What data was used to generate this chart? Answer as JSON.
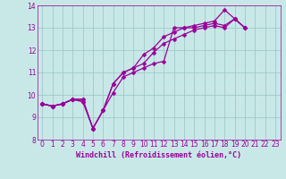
{
  "title": "",
  "xlabel": "Windchill (Refroidissement éolien,°C)",
  "ylabel": "",
  "background_color": "#c8e8e8",
  "grid_color": "#a0c8c8",
  "line_color": "#990099",
  "xlim": [
    -0.5,
    23.5
  ],
  "ylim": [
    8,
    14
  ],
  "yticks": [
    8,
    9,
    10,
    11,
    12,
    13,
    14
  ],
  "xticks": [
    0,
    1,
    2,
    3,
    4,
    5,
    6,
    7,
    8,
    9,
    10,
    11,
    12,
    13,
    14,
    15,
    16,
    17,
    18,
    19,
    20,
    21,
    22,
    23
  ],
  "series": [
    [
      9.6,
      9.5,
      9.6,
      9.8,
      9.8,
      8.5,
      9.3,
      10.1,
      10.8,
      11.0,
      11.2,
      11.4,
      11.5,
      13.0,
      13.0,
      13.1,
      13.2,
      13.3,
      13.8,
      13.4,
      13.0,
      null,
      null,
      null
    ],
    [
      9.6,
      9.5,
      9.6,
      9.8,
      9.8,
      8.5,
      9.3,
      10.5,
      11.0,
      11.2,
      11.8,
      12.1,
      12.6,
      12.8,
      13.0,
      13.0,
      13.1,
      13.2,
      13.1,
      13.4,
      13.0,
      null,
      null,
      null
    ],
    [
      9.6,
      9.5,
      9.6,
      9.8,
      9.7,
      8.5,
      9.3,
      10.5,
      11.0,
      11.2,
      11.4,
      11.9,
      12.3,
      12.5,
      12.7,
      12.9,
      13.0,
      13.1,
      13.0,
      13.4,
      13.0,
      null,
      null,
      null
    ],
    [
      9.6,
      9.5,
      9.6,
      9.8,
      9.7,
      null,
      null,
      null,
      null,
      null,
      null,
      null,
      null,
      null,
      null,
      null,
      null,
      null,
      null,
      null,
      null,
      null,
      null,
      null
    ]
  ],
  "marker_size": 2.5,
  "line_width": 0.9,
  "tick_fontsize": 5.5,
  "xlabel_fontsize": 6.0
}
